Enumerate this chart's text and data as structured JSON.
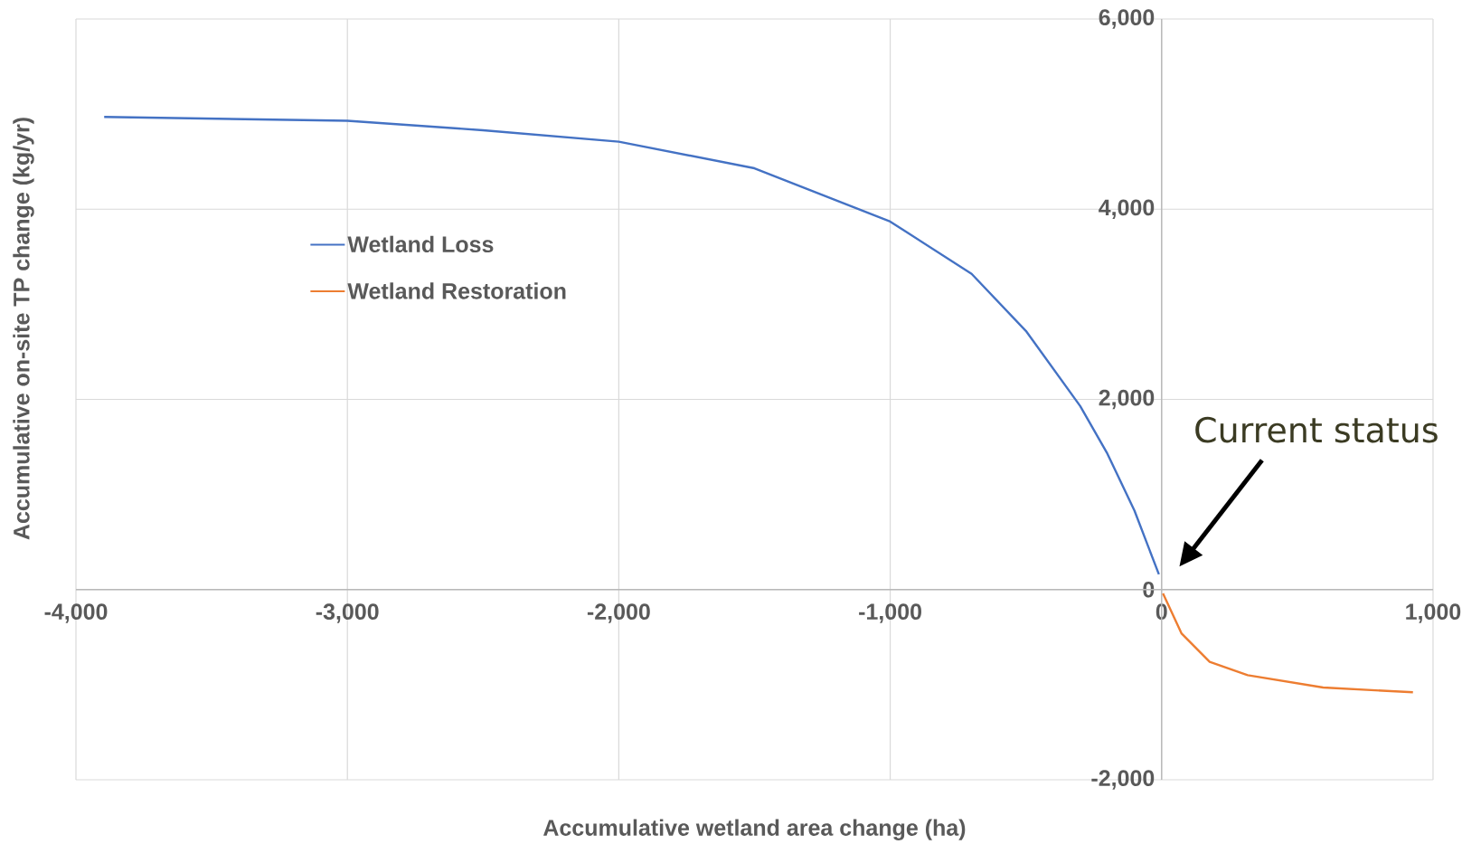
{
  "chart_data": {
    "type": "line",
    "xlabel": "Accumulative wetland area change (ha)",
    "ylabel": "Accumulative on-site TP change (kg/yr)",
    "xlim": [
      -4000,
      1000
    ],
    "ylim": [
      -2000,
      6000
    ],
    "xticks": [
      {
        "value": -4000,
        "label": "-4,000"
      },
      {
        "value": -3000,
        "label": "-3,000"
      },
      {
        "value": -2000,
        "label": "-2,000"
      },
      {
        "value": -1000,
        "label": "-1,000"
      },
      0,
      {
        "value": 1000,
        "label": "1,000"
      }
    ],
    "yticks": [
      {
        "value": -2000,
        "label": "-2,000"
      },
      0,
      {
        "value": 2000,
        "label": "2,000"
      },
      {
        "value": 4000,
        "label": "4,000"
      },
      {
        "value": 6000,
        "label": "6,000"
      }
    ],
    "grid": true,
    "legend": "left",
    "marker": "none",
    "line_style": "solid",
    "series": [
      {
        "name": "Wetland Loss",
        "color": "#4472c4",
        "x": [
          -3896,
          -3000,
          -2500,
          -2000,
          -1500,
          -1000,
          -700,
          -500,
          -300,
          -200,
          -100,
          -10
        ],
        "values": [
          4970,
          4930,
          4830,
          4710,
          4430,
          3870,
          3320,
          2720,
          1930,
          1430,
          830,
          160
        ]
      },
      {
        "name": "Wetland Restoration",
        "color": "#ed7d31",
        "x": [
          5,
          73,
          177,
          317,
          595,
          926
        ],
        "values": [
          -40,
          -460,
          -760,
          -900,
          -1030,
          -1080
        ]
      }
    ],
    "annotations": [
      "Current status"
    ]
  }
}
